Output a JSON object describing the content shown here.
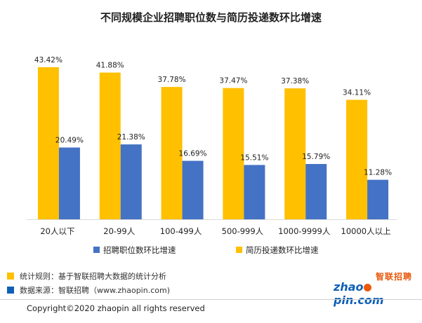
{
  "chart_data": {
    "type": "bar",
    "title": "不同规模企业招聘职位数与简历投递数环比增速",
    "categories": [
      "20人以下",
      "20-99人",
      "100-499人",
      "500-999人",
      "1000-9999人",
      "10000人以上"
    ],
    "series": [
      {
        "name": "招聘职位数环比增速",
        "color": "#4472c4",
        "values": [
          20.49,
          21.38,
          16.69,
          15.51,
          15.79,
          11.28
        ],
        "labels": [
          "20.49%",
          "21.38%",
          "16.69%",
          "15.51%",
          "15.79%",
          "11.28%"
        ]
      },
      {
        "name": "简历投递数环比增速",
        "color": "#ffc000",
        "values": [
          43.42,
          41.88,
          37.78,
          37.47,
          37.38,
          34.11
        ],
        "labels": [
          "43.42%",
          "41.88%",
          "37.78%",
          "37.47%",
          "37.38%",
          "34.11%"
        ]
      }
    ],
    "ylim": [
      0,
      50
    ],
    "grid": false,
    "legend": "bottom"
  },
  "notes": [
    {
      "swatch_color": "#ffc000",
      "text": "统计规则：基于智联招聘大数据的统计分析"
    },
    {
      "swatch_color": "#0f5fb6",
      "text": "数据来源：智联招聘（www.zhaopin.com)"
    }
  ],
  "brand": {
    "cn": "智联招聘",
    "en_prefix": "zhao",
    "en_suffix": "pin.com"
  },
  "footer": {
    "copyright": "Copyright©2020 zhaopin all rights reserved"
  }
}
